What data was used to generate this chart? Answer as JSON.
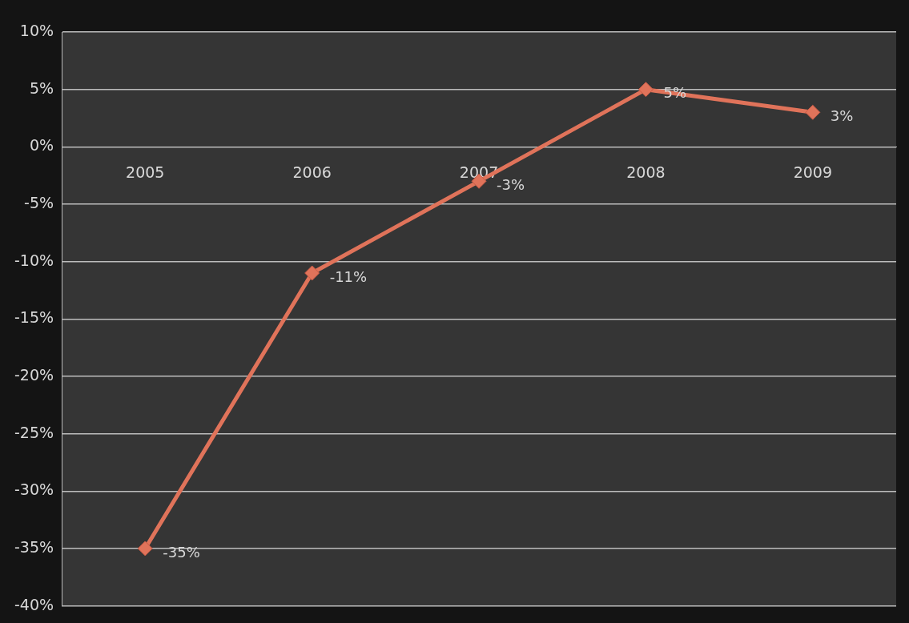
{
  "chart_data": {
    "type": "line",
    "categories": [
      "2005",
      "2006",
      "2007",
      "2008",
      "2009"
    ],
    "values": [
      -35,
      -11,
      -3,
      5,
      3
    ],
    "value_labels": [
      "-35%",
      "-11%",
      "-3%",
      "5%",
      "3%"
    ],
    "color": "#e0735a",
    "marker": "diamond",
    "line_style": "solid",
    "grid": "y",
    "legend": false,
    "ylim": [
      -40,
      10
    ],
    "yticks": [
      {
        "value": -40,
        "label": "-40%"
      },
      {
        "value": -35,
        "label": "-35%"
      },
      {
        "value": -30,
        "label": "-30%"
      },
      {
        "value": -25,
        "label": "-25%"
      },
      {
        "value": -20,
        "label": "-20%"
      },
      {
        "value": -15,
        "label": "-15%"
      },
      {
        "value": -10,
        "label": "-10%"
      },
      {
        "value": -5,
        "label": "-5%"
      },
      {
        "value": 0,
        "label": "0%"
      },
      {
        "value": 5,
        "label": "5%"
      },
      {
        "value": 10,
        "label": "10%"
      }
    ]
  }
}
